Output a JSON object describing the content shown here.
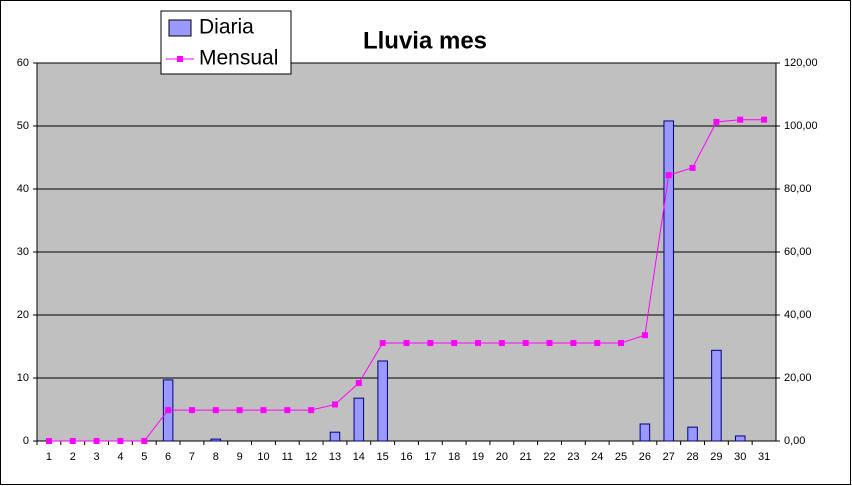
{
  "chart_data": {
    "type": "bar",
    "title": "Lluvia mes",
    "categories": [
      "1",
      "2",
      "3",
      "4",
      "5",
      "6",
      "7",
      "8",
      "9",
      "10",
      "11",
      "12",
      "13",
      "14",
      "15",
      "16",
      "17",
      "18",
      "19",
      "20",
      "21",
      "22",
      "23",
      "24",
      "25",
      "26",
      "27",
      "28",
      "29",
      "30",
      "31"
    ],
    "series": [
      {
        "name": "Diaria",
        "type": "bar",
        "color": "#9999ff",
        "values": [
          0,
          0,
          0,
          0,
          0,
          9.7,
          0,
          0.3,
          0,
          0,
          0,
          0,
          1.4,
          6.8,
          12.7,
          0,
          0,
          0,
          0,
          0,
          0,
          0,
          0,
          0,
          0,
          2.7,
          50.8,
          2.2,
          14.4,
          0.8,
          0
        ]
      },
      {
        "name": "Mensual",
        "type": "line",
        "axis": "y2",
        "color": "#ff00ff",
        "values": [
          0,
          0,
          0,
          0,
          0,
          9.8,
          9.8,
          9.8,
          9.8,
          9.8,
          9.8,
          9.8,
          11.6,
          18.4,
          31.1,
          31.1,
          31.1,
          31.1,
          31.1,
          31.1,
          31.1,
          31.1,
          31.1,
          31.1,
          31.1,
          33.6,
          84.4,
          86.7,
          101.3,
          102,
          102
        ]
      }
    ],
    "ylim": [
      0,
      60
    ],
    "yticks": [
      0,
      10,
      20,
      30,
      40,
      50,
      60
    ],
    "y2lim": [
      0,
      120
    ],
    "y2ticks": [
      {
        "value": 0,
        "label": "0,00"
      },
      {
        "value": 20,
        "label": "20,00"
      },
      {
        "value": 40,
        "label": "40,00"
      },
      {
        "value": 60,
        "label": "60,00"
      },
      {
        "value": 80,
        "label": "80,00"
      },
      {
        "value": 100,
        "label": "100,00"
      },
      {
        "value": 120,
        "label": "120,00"
      }
    ],
    "grid": true,
    "legend": "top-left"
  }
}
